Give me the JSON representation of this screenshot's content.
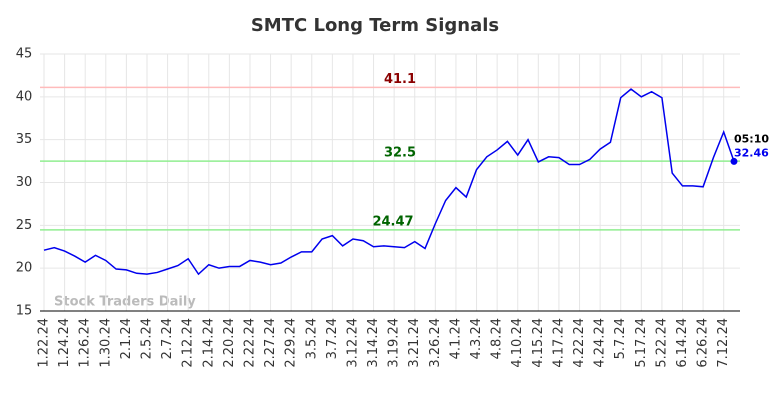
{
  "chart_data": {
    "type": "line",
    "title": "SMTC Long Term Signals",
    "watermark": "Stock Traders Daily",
    "categories": [
      "1.22.24",
      null,
      "1.24.24",
      null,
      "1.26.24",
      null,
      "1.30.24",
      null,
      "2.1.24",
      null,
      "2.5.24",
      null,
      "2.7.24",
      null,
      "2.12.24",
      null,
      "2.14.24",
      null,
      "2.20.24",
      null,
      "2.22.24",
      null,
      "2.27.24",
      null,
      "2.29.24",
      null,
      "3.5.24",
      null,
      "3.7.24",
      null,
      "3.12.24",
      null,
      "3.14.24",
      null,
      "3.19.24",
      null,
      "3.21.24",
      null,
      "3.26.24",
      null,
      "4.1.24",
      null,
      "4.3.24",
      null,
      "4.8.24",
      null,
      "4.10.24",
      null,
      "4.15.24",
      null,
      "4.17.24",
      null,
      "4.22.24",
      null,
      "4.24.24",
      null,
      "5.7.24",
      null,
      "5.17.24",
      null,
      "5.22.24",
      null,
      "6.14.24",
      null,
      "6.26.24",
      null,
      "7.12.24",
      null
    ],
    "series": [
      {
        "color": "#0000ee",
        "values": [
          22.1,
          22.4,
          22.0,
          21.4,
          20.7,
          21.5,
          20.9,
          19.9,
          19.8,
          19.4,
          19.3,
          19.5,
          19.9,
          20.3,
          21.1,
          19.3,
          20.4,
          20.0,
          20.2,
          20.2,
          20.9,
          20.7,
          20.4,
          20.6,
          21.3,
          21.9,
          21.9,
          23.4,
          23.8,
          22.6,
          23.4,
          23.2,
          22.5,
          22.6,
          22.5,
          22.4,
          23.1,
          22.3,
          25.2,
          27.9,
          29.4,
          28.3,
          31.5,
          33.0,
          33.8,
          34.8,
          33.2,
          35.0,
          32.4,
          33.0,
          32.9,
          32.1,
          32.1,
          32.7,
          33.9,
          34.7,
          39.9,
          40.9,
          40.0,
          40.6,
          39.9,
          31.1,
          29.6,
          29.6,
          29.5,
          32.9,
          35.9,
          32.46
        ]
      }
    ],
    "last_point_time": "05:10",
    "hlines": [
      {
        "value": 41.1,
        "color": "#ffbbbb",
        "label_color": "#8b0000"
      },
      {
        "value": 32.5,
        "color": "#90ee90",
        "label_color": "#006400"
      },
      {
        "value": 24.47,
        "color": "#90ee90",
        "label_color": "#006400"
      }
    ],
    "ylim": [
      15,
      45
    ],
    "yticks": [
      15,
      20,
      25,
      30,
      35,
      40,
      45
    ],
    "grid": true
  }
}
